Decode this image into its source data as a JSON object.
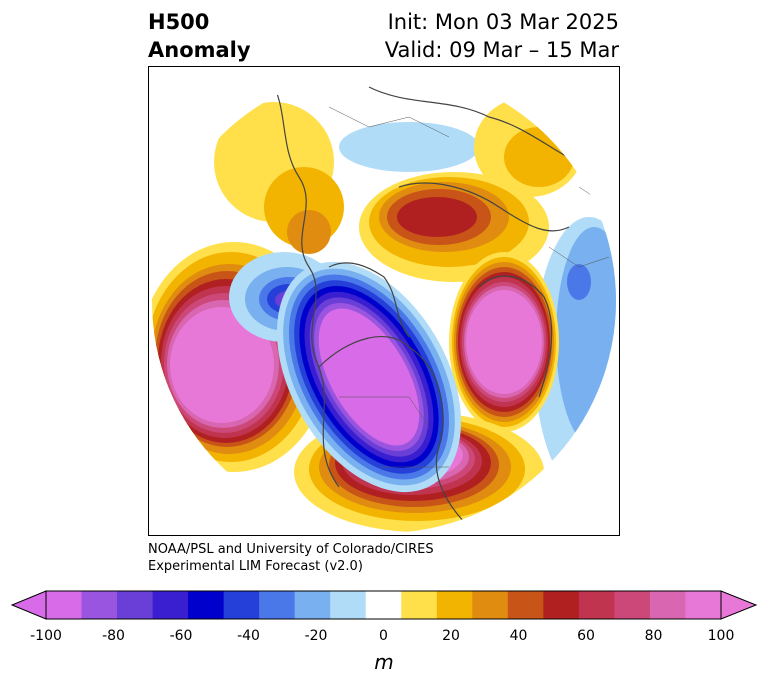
{
  "title": {
    "left_line1": "H500",
    "left_line2": "Anomaly",
    "init": "Init: Mon 03 Mar 2025",
    "valid": "Valid: 09 Mar – 15 Mar"
  },
  "credit": {
    "line1": "NOAA/PSL and University of Colorado/CIRES",
    "line2": "Experimental LIM Forecast (v2.0)"
  },
  "colorbar": {
    "levels": [
      -100,
      -90,
      -80,
      -70,
      -60,
      -50,
      -40,
      -30,
      -20,
      -10,
      10,
      20,
      30,
      40,
      50,
      60,
      70,
      80,
      90,
      100
    ],
    "colors": [
      "#d86be8",
      "#9a55e0",
      "#6a3fd8",
      "#3a1fd0",
      "#0000cc",
      "#2440d8",
      "#4a78e8",
      "#78b0f0",
      "#b0dcf8",
      "#ffffff",
      "#ffe04a",
      "#f2b400",
      "#e08c10",
      "#c85418",
      "#b02020",
      "#c03450",
      "#cc4878",
      "#d866b0",
      "#e878d8"
    ],
    "tick_labels": [
      "-100",
      "-80",
      "-60",
      "-40",
      "-20",
      "0",
      "20",
      "40",
      "60",
      "80",
      "100"
    ],
    "unit": "m"
  }
}
